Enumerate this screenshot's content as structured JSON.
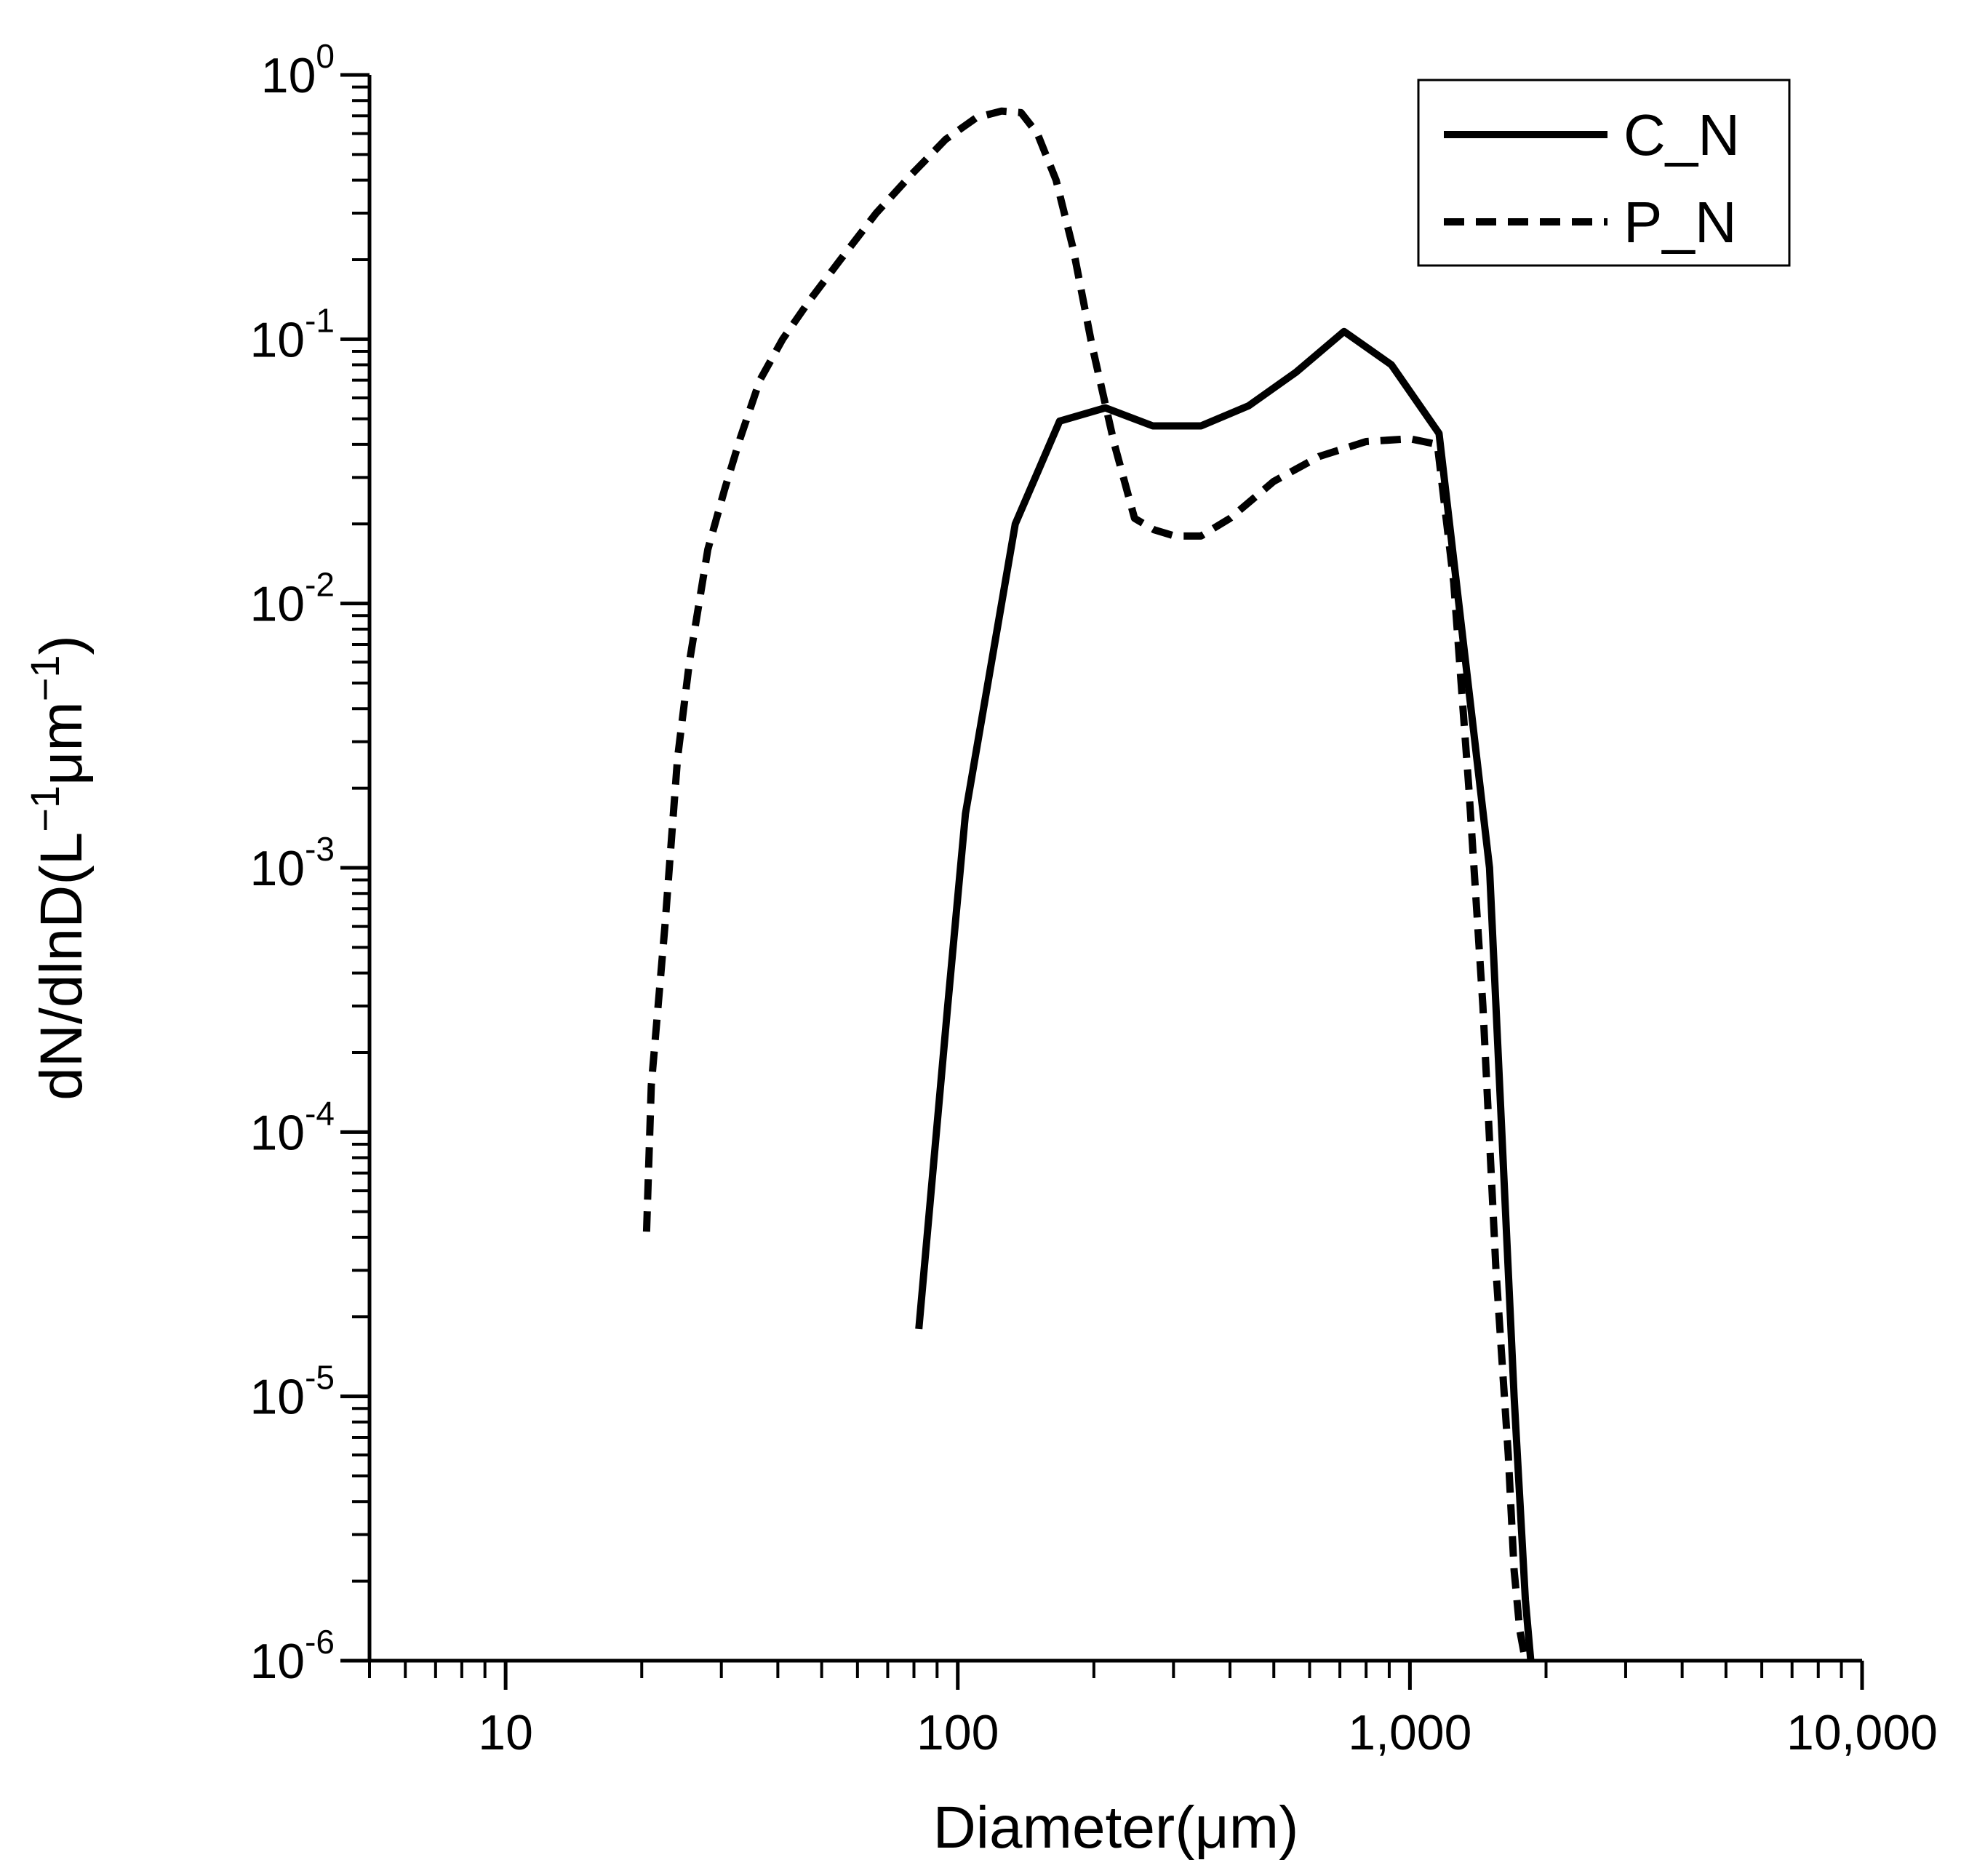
{
  "chart_data": {
    "type": "line",
    "title": "",
    "xlabel": "Diameter(μm)",
    "ylabel": {
      "base": "dN/dlnD(L",
      "sup1": "−1",
      "mid": "μm",
      "sup2": "−1",
      "end": ")"
    },
    "xscale": "log",
    "yscale": "log",
    "xlim": [
      5,
      10000
    ],
    "ylim": [
      1e-06,
      1
    ],
    "xticks": [
      {
        "value": 10,
        "label": "10"
      },
      {
        "value": 100,
        "label": "100"
      },
      {
        "value": 1000,
        "label": "1,000"
      },
      {
        "value": 10000,
        "label": "10,000"
      }
    ],
    "yticks": [
      {
        "value": 1,
        "base": "10",
        "exp": "0"
      },
      {
        "value": 0.1,
        "base": "10",
        "exp": "-1"
      },
      {
        "value": 0.01,
        "base": "10",
        "exp": "-2"
      },
      {
        "value": 0.001,
        "base": "10",
        "exp": "-3"
      },
      {
        "value": 0.0001,
        "base": "10",
        "exp": "-4"
      },
      {
        "value": 1e-05,
        "base": "10",
        "exp": "-5"
      },
      {
        "value": 1e-06,
        "base": "10",
        "exp": "-6"
      }
    ],
    "legend_position": "top-right",
    "series": [
      {
        "name": "C_N",
        "style": "solid",
        "x": [
          82,
          95,
          104,
          134,
          168,
          212,
          270,
          345,
          440,
          560,
          715,
          910,
          1160,
          1500,
          1700,
          1800,
          1850
        ],
        "y": [
          1.8e-05,
          0.0003,
          0.0016,
          0.02,
          0.049,
          0.055,
          0.047,
          0.047,
          0.056,
          0.075,
          0.107,
          0.08,
          0.044,
          0.001,
          1e-05,
          1.7e-06,
          1e-06
        ]
      },
      {
        "name": "P_N",
        "style": "dashed",
        "x": [
          20.5,
          21,
          22.5,
          24,
          25.5,
          28,
          30.5,
          33,
          36.5,
          41,
          47,
          55,
          66,
          79,
          94,
          110,
          125,
          138,
          150,
          165,
          180,
          198,
          222,
          246,
          272,
          302,
          345,
          400,
          500,
          630,
          800,
          1000,
          1150,
          1250,
          1350,
          1450,
          1550,
          1650,
          1700,
          1750,
          1800
        ],
        "y": [
          4.2e-05,
          0.00015,
          0.0006,
          0.0026,
          0.006,
          0.016,
          0.027,
          0.042,
          0.07,
          0.1,
          0.14,
          0.2,
          0.3,
          0.42,
          0.57,
          0.69,
          0.73,
          0.72,
          0.6,
          0.4,
          0.22,
          0.095,
          0.04,
          0.021,
          0.019,
          0.018,
          0.018,
          0.021,
          0.029,
          0.036,
          0.041,
          0.042,
          0.04,
          0.012,
          0.002,
          0.0003,
          3e-05,
          6e-06,
          2.2e-06,
          1.3e-06,
          1e-06
        ]
      }
    ]
  }
}
